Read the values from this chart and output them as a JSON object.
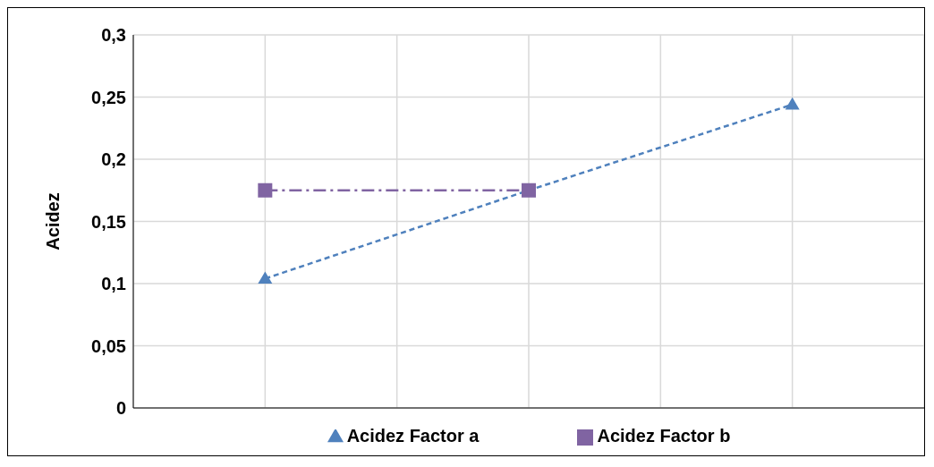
{
  "chart_data": {
    "type": "line",
    "ylabel": "Acidez",
    "categories": [
      null,
      null,
      null
    ],
    "series": [
      {
        "name": "Acidez Factor a",
        "color": "#4f81bd",
        "values": [
          0.104,
          0.175,
          0.244
        ],
        "marker": "triangle",
        "line_style": "dashed"
      },
      {
        "name": "Acidez Factor b",
        "color": "#8064a2",
        "values": [
          0.175,
          0.175,
          null
        ],
        "marker": "square",
        "line_style": "dashed"
      }
    ],
    "ylim": [
      0,
      0.3
    ],
    "yticks": [
      {
        "value": 0,
        "label": "0"
      },
      {
        "value": 0.05,
        "label": "0,05"
      },
      {
        "value": 0.1,
        "label": "0,1"
      },
      {
        "value": 0.15,
        "label": "0,15"
      },
      {
        "value": 0.2,
        "label": "0,2"
      },
      {
        "value": 0.25,
        "label": "0,25"
      },
      {
        "value": 0.3,
        "label": "0,3"
      }
    ],
    "grid": true,
    "legend": "bottom",
    "tick_labels": "y"
  }
}
